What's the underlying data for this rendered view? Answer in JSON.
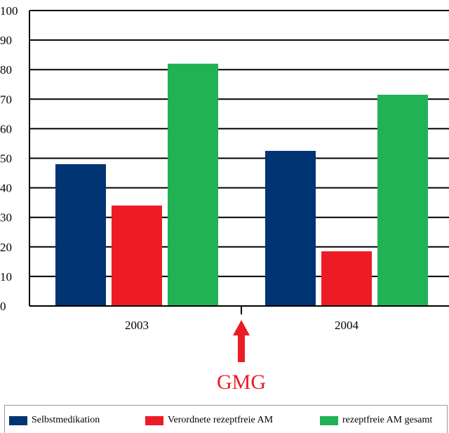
{
  "chart_data": {
    "type": "bar",
    "categories": [
      "2003",
      "2004"
    ],
    "series": [
      {
        "name": "Selbstmedikation",
        "values": [
          48,
          52.5
        ],
        "color": "#003473"
      },
      {
        "name": "Verordnete rezeptfreie AM",
        "values": [
          34,
          18.5
        ],
        "color": "#ed1c24"
      },
      {
        "name": "rezeptfreie AM gesamt",
        "values": [
          82,
          71.5
        ],
        "color": "#21b256"
      }
    ],
    "ylim": [
      0,
      100
    ],
    "yticks": [
      "0",
      "10",
      "20",
      "30",
      "40",
      "50",
      "60",
      "70",
      "80",
      "90",
      "100"
    ],
    "grid": true,
    "legend_position": "bottom",
    "annotation": {
      "text": "GMG",
      "color": "#ed1c24"
    }
  }
}
